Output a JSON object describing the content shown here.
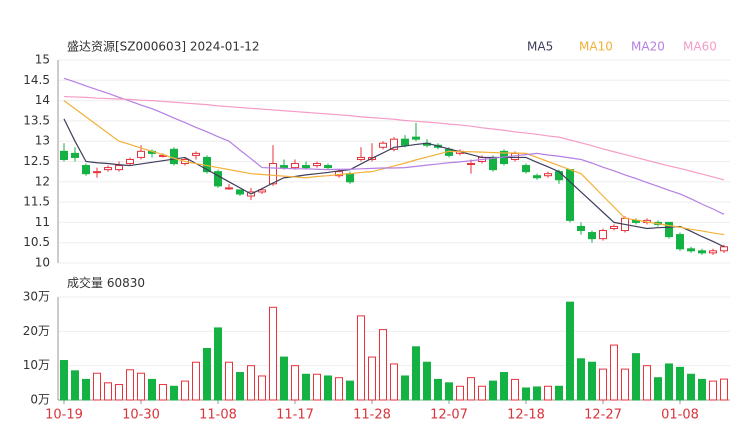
{
  "chart_data": {
    "type": "candlestick",
    "title": "盛达资源[SZ000603] 2024-01-12",
    "categories": [
      "10-19",
      null,
      null,
      null,
      null,
      null,
      null,
      "10-30",
      null,
      null,
      null,
      null,
      null,
      null,
      "11-08",
      null,
      null,
      null,
      null,
      null,
      null,
      "11-17",
      null,
      null,
      null,
      null,
      null,
      null,
      "11-28",
      null,
      null,
      null,
      null,
      null,
      null,
      "12-07",
      null,
      null,
      null,
      null,
      null,
      null,
      "12-18",
      null,
      null,
      null,
      null,
      null,
      null,
      "12-27",
      null,
      null,
      null,
      null,
      null,
      null,
      "01-08",
      null,
      null,
      null,
      null
    ],
    "open": [
      12.75,
      12.7,
      12.4,
      12.25,
      12.3,
      12.3,
      12.45,
      12.6,
      12.75,
      12.65,
      12.8,
      12.45,
      12.65,
      12.6,
      12.25,
      11.85,
      11.8,
      11.65,
      11.75,
      11.95,
      12.4,
      12.35,
      12.4,
      12.4,
      12.4,
      12.15,
      12.2,
      12.55,
      12.55,
      12.85,
      12.8,
      13.05,
      13.1,
      12.95,
      12.9,
      12.8,
      12.7,
      12.45,
      12.5,
      12.6,
      12.75,
      12.55,
      12.4,
      12.15,
      12.15,
      12.25,
      12.3,
      10.9,
      10.75,
      10.6,
      10.85,
      10.8,
      11.05,
      11.0,
      11.0,
      11.0,
      10.7,
      10.35,
      10.3,
      10.25,
      10.3
    ],
    "close": [
      12.55,
      12.6,
      12.2,
      12.25,
      12.35,
      12.4,
      12.55,
      12.75,
      12.7,
      12.65,
      12.45,
      12.55,
      12.7,
      12.25,
      11.9,
      11.85,
      11.7,
      11.75,
      11.8,
      12.45,
      12.35,
      12.45,
      12.35,
      12.45,
      12.35,
      12.25,
      12.0,
      12.6,
      12.6,
      12.95,
      13.05,
      12.9,
      13.05,
      12.9,
      12.85,
      12.65,
      12.75,
      12.45,
      12.6,
      12.3,
      12.45,
      12.7,
      12.25,
      12.1,
      12.2,
      12.05,
      11.05,
      10.8,
      10.6,
      10.8,
      10.9,
      11.1,
      11.0,
      11.05,
      10.95,
      10.65,
      10.35,
      10.3,
      10.25,
      10.3,
      10.4
    ],
    "high": [
      12.95,
      12.85,
      12.45,
      12.35,
      12.4,
      12.5,
      12.6,
      12.9,
      12.8,
      12.7,
      12.85,
      12.6,
      12.75,
      12.65,
      12.3,
      11.95,
      11.8,
      11.85,
      11.85,
      12.9,
      12.55,
      12.55,
      12.5,
      12.5,
      12.45,
      12.3,
      12.25,
      12.85,
      12.95,
      13.0,
      13.1,
      13.15,
      13.45,
      13.05,
      12.95,
      12.85,
      12.8,
      12.55,
      12.65,
      12.65,
      12.8,
      12.75,
      12.45,
      12.2,
      12.25,
      12.3,
      12.3,
      11.0,
      10.8,
      10.85,
      10.95,
      11.15,
      11.1,
      11.1,
      11.05,
      11.0,
      10.75,
      10.4,
      10.35,
      10.35,
      10.45
    ],
    "low": [
      12.5,
      12.5,
      12.15,
      12.1,
      12.25,
      12.25,
      12.4,
      12.55,
      12.6,
      12.6,
      12.4,
      12.4,
      12.55,
      12.2,
      11.85,
      11.8,
      11.65,
      11.55,
      11.7,
      11.9,
      12.3,
      12.3,
      12.3,
      12.35,
      12.3,
      12.1,
      11.95,
      12.5,
      12.5,
      12.8,
      12.75,
      12.85,
      13.0,
      12.85,
      12.8,
      12.6,
      12.65,
      12.2,
      12.45,
      12.25,
      12.4,
      12.5,
      12.2,
      12.05,
      12.1,
      11.95,
      11.0,
      10.7,
      10.5,
      10.55,
      10.8,
      10.75,
      10.95,
      10.95,
      10.9,
      10.6,
      10.3,
      10.25,
      10.2,
      10.2,
      10.25
    ],
    "up_color": "#e8323c",
    "down_color": "#14b143",
    "ylim": [
      10,
      15
    ],
    "yticks": [
      10,
      10.5,
      11,
      11.5,
      12,
      12.5,
      13,
      13.5,
      14,
      14.5,
      15
    ],
    "series": [
      {
        "name": "MA5",
        "color": "#3d3d5c",
        "values": [
          13.55,
          13.0,
          12.5,
          12.47,
          12.45,
          12.42,
          12.4,
          12.44,
          12.48,
          12.52,
          12.56,
          12.6,
          12.45,
          12.3,
          12.15,
          12.0,
          11.85,
          11.7,
          11.83,
          11.97,
          12.1,
          12.13,
          12.17,
          12.2,
          12.23,
          12.27,
          12.3,
          12.44,
          12.58,
          12.71,
          12.85,
          12.88,
          12.92,
          12.95,
          12.88,
          12.81,
          12.74,
          12.67,
          12.6,
          12.6,
          12.6,
          12.6,
          12.6,
          12.48,
          12.37,
          12.25,
          12.0,
          11.75,
          11.5,
          11.25,
          11.0,
          10.95,
          10.9,
          10.85,
          10.87,
          10.88,
          10.9,
          10.78,
          10.65,
          10.53,
          10.4
        ]
      },
      {
        "name": "MA10",
        "color": "#f2b13a",
        "values": [
          14.0,
          13.8,
          13.6,
          13.4,
          13.2,
          13.0,
          12.92,
          12.83,
          12.75,
          12.67,
          12.58,
          12.5,
          12.45,
          12.4,
          12.35,
          12.3,
          12.25,
          12.2,
          12.18,
          12.16,
          12.14,
          12.12,
          12.1,
          12.13,
          12.15,
          12.18,
          12.2,
          12.23,
          12.25,
          12.32,
          12.39,
          12.46,
          12.54,
          12.61,
          12.68,
          12.75,
          12.74,
          12.74,
          12.73,
          12.72,
          12.71,
          12.71,
          12.7,
          12.6,
          12.5,
          12.4,
          12.3,
          12.2,
          11.93,
          11.65,
          11.38,
          11.1,
          11.06,
          11.01,
          10.97,
          10.92,
          10.88,
          10.83,
          10.79,
          10.74,
          10.7
        ]
      },
      {
        "name": "MA20",
        "color": "#b57fe3",
        "values": [
          14.55,
          14.46,
          14.36,
          14.27,
          14.18,
          14.08,
          13.99,
          13.89,
          13.8,
          13.69,
          13.57,
          13.46,
          13.34,
          13.23,
          13.11,
          13.0,
          12.78,
          12.57,
          12.35,
          12.34,
          12.33,
          12.32,
          12.32,
          12.31,
          12.3,
          12.31,
          12.31,
          12.32,
          12.33,
          12.34,
          12.34,
          12.35,
          12.38,
          12.41,
          12.44,
          12.47,
          12.49,
          12.52,
          12.55,
          12.58,
          12.61,
          12.64,
          12.67,
          12.7,
          12.66,
          12.63,
          12.59,
          12.55,
          12.46,
          12.36,
          12.27,
          12.17,
          12.08,
          11.98,
          11.89,
          11.79,
          11.7,
          11.58,
          11.45,
          11.33,
          11.2
        ]
      },
      {
        "name": "MA60",
        "color": "#f59cc6",
        "values": [
          14.1,
          14.09,
          14.08,
          14.06,
          14.05,
          14.04,
          14.03,
          14.01,
          14.0,
          13.98,
          13.96,
          13.94,
          13.92,
          13.9,
          13.87,
          13.85,
          13.83,
          13.81,
          13.79,
          13.77,
          13.75,
          13.73,
          13.71,
          13.69,
          13.67,
          13.65,
          13.63,
          13.6,
          13.58,
          13.56,
          13.54,
          13.51,
          13.49,
          13.47,
          13.45,
          13.42,
          13.4,
          13.37,
          13.33,
          13.3,
          13.27,
          13.23,
          13.2,
          13.17,
          13.13,
          13.1,
          13.03,
          12.96,
          12.89,
          12.81,
          12.74,
          12.67,
          12.6,
          12.53,
          12.46,
          12.39,
          12.33,
          12.26,
          12.19,
          12.12,
          12.05
        ]
      }
    ],
    "volume_title": "成交量",
    "volume": [
      115000,
      85000,
      60000,
      78000,
      50000,
      45000,
      88000,
      78000,
      60000,
      45000,
      40000,
      55000,
      110000,
      150000,
      210000,
      110000,
      80000,
      100000,
      70000,
      270000,
      125000,
      100000,
      75000,
      75000,
      70000,
      65000,
      55000,
      245000,
      125000,
      205000,
      105000,
      70000,
      155000,
      110000,
      60000,
      50000,
      40000,
      65000,
      40000,
      55000,
      80000,
      60000,
      35000,
      38000,
      40000,
      40000,
      285000,
      120000,
      110000,
      90000,
      160000,
      90000,
      135000,
      100000,
      65000,
      105000,
      95000,
      75000,
      60000,
      55000,
      60830
    ],
    "vlim": [
      0,
      300000
    ],
    "vticks": [
      {
        "value": 0,
        "label": "0万"
      },
      {
        "value": 100000,
        "label": "10万"
      },
      {
        "value": 200000,
        "label": "20万"
      },
      {
        "value": 300000,
        "label": "30万"
      }
    ],
    "grid": true
  }
}
